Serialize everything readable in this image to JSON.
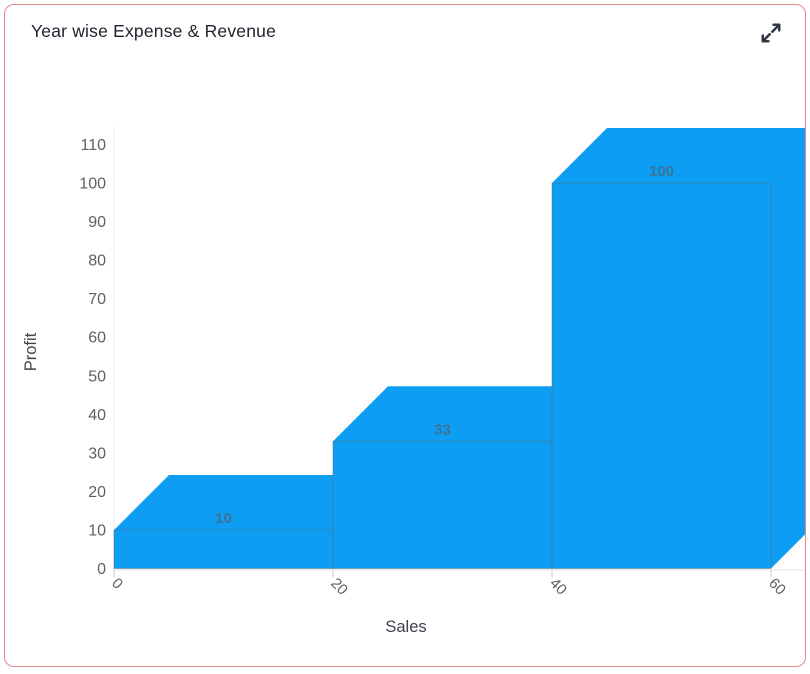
{
  "card": {
    "title": "Year wise Expense & Revenue"
  },
  "chart_data": {
    "type": "bar",
    "variant": "oblique-3d-step-area",
    "title": "Year wise Expense & Revenue",
    "xlabel": "Sales",
    "ylabel": "Profit",
    "x_edges": [
      0,
      20,
      40,
      60
    ],
    "values": [
      10,
      33,
      100
    ],
    "data_labels": [
      "10",
      "33",
      "100"
    ],
    "x_ticks": [
      0,
      20,
      40,
      60
    ],
    "x_tick_labels": [
      "0",
      "20",
      "40",
      "60"
    ],
    "y_ticks": [
      0,
      10,
      20,
      30,
      40,
      50,
      60,
      70,
      80,
      90,
      100,
      110
    ],
    "y_tick_labels": [
      "0",
      "10",
      "20",
      "30",
      "40",
      "50",
      "60",
      "70",
      "80",
      "90",
      "100",
      "110"
    ],
    "xlim": [
      0,
      63
    ],
    "ylim": [
      0,
      110
    ],
    "grid": false,
    "legend": false,
    "bar_color": "#0d9ef3",
    "outline_color": "#5a6a74",
    "data_label_color": "#4e6271",
    "tick_label_color": "#5d6066",
    "axis_title_color": "#3f414d",
    "card_border_color": "#e18a8a",
    "icon_color": "#2f3542"
  }
}
